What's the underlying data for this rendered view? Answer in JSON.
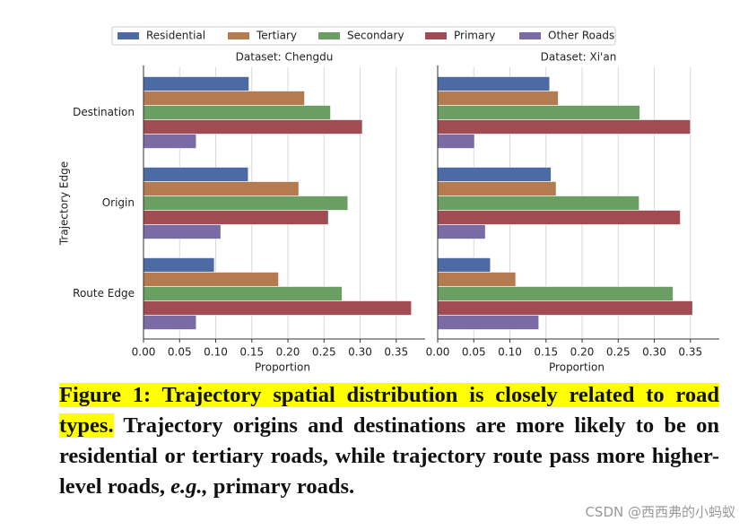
{
  "chart_data": {
    "type": "bar",
    "orientation": "horizontal",
    "grid": true,
    "legend": "top",
    "xlabel": "Proportion",
    "ylabel": "Trajectory Edge",
    "categories": [
      "Destination",
      "Origin",
      "Route Edge"
    ],
    "series": [
      {
        "name": "Residential",
        "color": "#4c6aa4"
      },
      {
        "name": "Tertiary",
        "color": "#b57b50"
      },
      {
        "name": "Secondary",
        "color": "#6a9e62"
      },
      {
        "name": "Primary",
        "color": "#a04c52"
      },
      {
        "name": "Other Roads",
        "color": "#7b6ba5"
      }
    ],
    "xlim": [
      0,
      0.39
    ],
    "xticks": [
      {
        "value": 0,
        "label": "0.00"
      },
      {
        "value": 0.05,
        "label": "0.05"
      },
      {
        "value": 0.1,
        "label": "0.10"
      },
      {
        "value": 0.15,
        "label": "0.15"
      },
      {
        "value": 0.2,
        "label": "0.20"
      },
      {
        "value": 0.25,
        "label": "0.25"
      },
      {
        "value": 0.3,
        "label": "0.30"
      },
      {
        "value": 0.35,
        "label": "0.35"
      }
    ],
    "panels": [
      {
        "title": "Dataset: Chengdu",
        "values": [
          [
            0.146,
            0.145,
            0.098
          ],
          [
            0.223,
            0.215,
            0.187
          ],
          [
            0.259,
            0.283,
            0.275
          ],
          [
            0.303,
            0.256,
            0.371
          ],
          [
            0.073,
            0.107,
            0.073
          ]
        ]
      },
      {
        "title": "Dataset: Xi'an",
        "values": [
          [
            0.155,
            0.157,
            0.073
          ],
          [
            0.167,
            0.164,
            0.108
          ],
          [
            0.28,
            0.279,
            0.326
          ],
          [
            0.35,
            0.336,
            0.353
          ],
          [
            0.051,
            0.066,
            0.14
          ]
        ]
      }
    ]
  },
  "caption": {
    "lead": "Figure 1: Trajectory spatial distribution is closely related to road types.",
    "text": "Trajectory origins and destinations are more likely to be on residential or tertiary roads, while trajectory route pass more higher-level roads,",
    "emphasis": "e.g.,",
    "tail": "primary roads."
  },
  "watermark": "CSDN @西西弗的小蚂蚁"
}
